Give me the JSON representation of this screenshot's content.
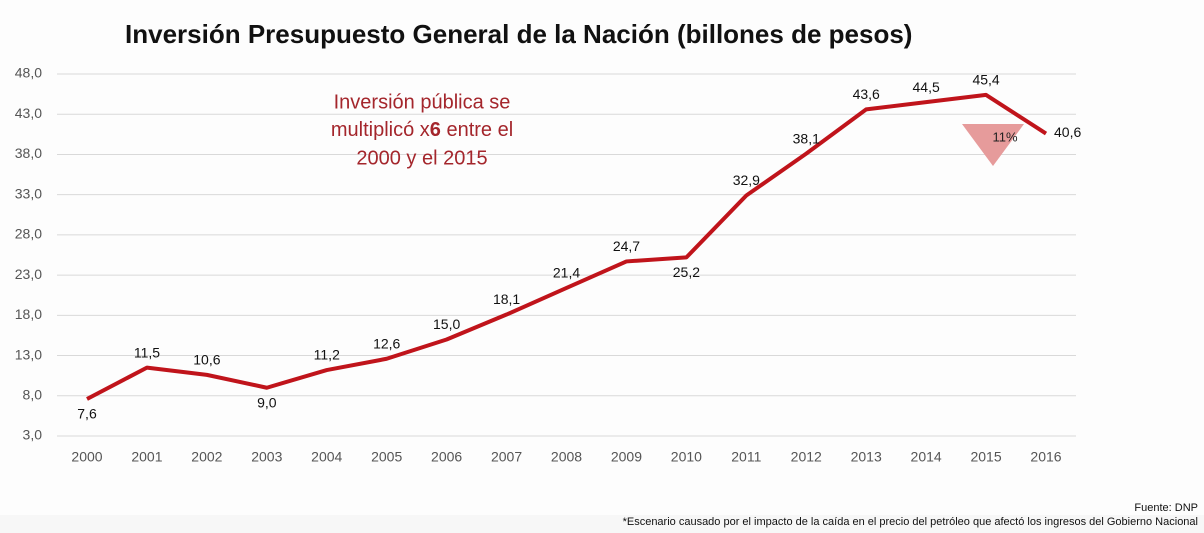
{
  "chart_data": {
    "type": "line",
    "title": "Inversión Presupuesto General de la Nación (billones de pesos)",
    "categories": [
      "2000",
      "2001",
      "2002",
      "2003",
      "2004",
      "2005",
      "2006",
      "2007",
      "2008",
      "2009",
      "2010",
      "2011",
      "2012",
      "2013",
      "2014",
      "2015",
      "2016"
    ],
    "series": [
      {
        "name": "Inversión",
        "color": "#c0141b",
        "values": [
          7.6,
          11.5,
          10.6,
          9.0,
          11.2,
          12.6,
          15.0,
          18.1,
          21.4,
          24.7,
          25.2,
          32.9,
          38.1,
          43.6,
          44.5,
          45.4,
          40.6
        ],
        "value_labels": [
          "7,6",
          "11,5",
          "10,6",
          "9,0",
          "11,2",
          "12,6",
          "15,0",
          "18,1",
          "21,4",
          "24,7",
          "25,2",
          "32,9",
          "38,1",
          "43,6",
          "44,5",
          "45,4",
          "40,6"
        ]
      }
    ],
    "ylim": [
      3,
      48
    ],
    "yticks": [
      {
        "value": 3,
        "label": "3,0"
      },
      {
        "value": 8,
        "label": "8,0"
      },
      {
        "value": 13,
        "label": "13,0"
      },
      {
        "value": 18,
        "label": "18,0"
      },
      {
        "value": 23,
        "label": "23,0"
      },
      {
        "value": 28,
        "label": "28,0"
      },
      {
        "value": 33,
        "label": "33,0"
      },
      {
        "value": 38,
        "label": "38,0"
      },
      {
        "value": 43,
        "label": "43,0"
      },
      {
        "value": 48,
        "label": "48,0"
      }
    ],
    "grid": true,
    "annotation": [
      "Inversión pública se",
      "multiplicó x",
      "6",
      " entre el",
      "2000 y el 2015"
    ],
    "drop_label": "11%",
    "source": "Fuente: DNP",
    "footnote": "*Escenario causado por el impacto de la caída en el precio del petróleo que afectó los ingresos del Gobierno Nacional"
  }
}
